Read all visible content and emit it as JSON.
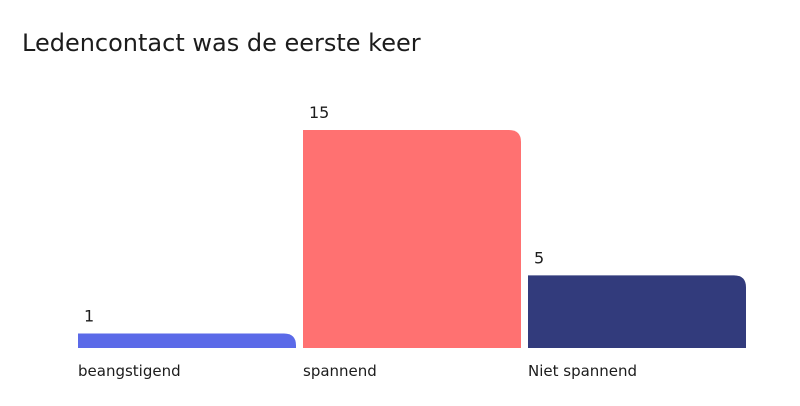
{
  "chart_data": {
    "type": "bar",
    "title": "Ledencontact was de eerste keer",
    "categories": [
      "beangstigend",
      "spannend",
      "Niet spannend"
    ],
    "values": [
      1,
      15,
      5
    ],
    "colors": [
      "#5b6ae8",
      "#ff7171",
      "#323b7c"
    ]
  }
}
